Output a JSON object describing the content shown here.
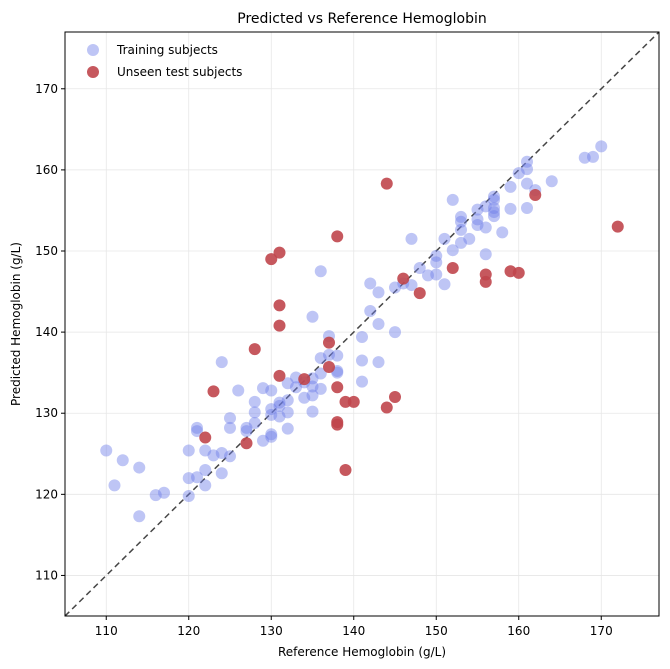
{
  "chart_data": {
    "type": "scatter",
    "title": "Predicted vs Reference Hemoglobin",
    "xlabel": "Reference Hemoglobin (g/L)",
    "ylabel": "Predicted Hemoglobin (g/L)",
    "xlim": [
      105,
      177
    ],
    "ylim": [
      105,
      177
    ],
    "xticks": [
      110,
      120,
      130,
      140,
      150,
      160,
      170
    ],
    "yticks": [
      110,
      120,
      130,
      140,
      150,
      160,
      170
    ],
    "grid": true,
    "legend_position": "top-left",
    "reference_line": "y = x (dashed)",
    "series": [
      {
        "name": "Training subjects",
        "color": "#6f7ee8",
        "points": [
          [
            110,
            125.4
          ],
          [
            111,
            121.1
          ],
          [
            112,
            124.2
          ],
          [
            114,
            117.3
          ],
          [
            114,
            123.3
          ],
          [
            116,
            119.9
          ],
          [
            117,
            120.2
          ],
          [
            120,
            119.8
          ],
          [
            120,
            122.0
          ],
          [
            120,
            125.4
          ],
          [
            121,
            127.8
          ],
          [
            121,
            128.2
          ],
          [
            121,
            122.1
          ],
          [
            122,
            121.1
          ],
          [
            122,
            123.0
          ],
          [
            122,
            125.4
          ],
          [
            123,
            124.8
          ],
          [
            124,
            122.6
          ],
          [
            124,
            125.1
          ],
          [
            124,
            136.3
          ],
          [
            125,
            124.7
          ],
          [
            125,
            128.2
          ],
          [
            125,
            129.4
          ],
          [
            126,
            132.8
          ],
          [
            127,
            127.8
          ],
          [
            127,
            128.2
          ],
          [
            128,
            128.8
          ],
          [
            128,
            130.1
          ],
          [
            128,
            131.4
          ],
          [
            129,
            126.6
          ],
          [
            129,
            133.1
          ],
          [
            130,
            127.4
          ],
          [
            130,
            127.1
          ],
          [
            130,
            129.8
          ],
          [
            130,
            130.5
          ],
          [
            130,
            132.8
          ],
          [
            131,
            130.9
          ],
          [
            131,
            131.3
          ],
          [
            131,
            129.6
          ],
          [
            132,
            128.1
          ],
          [
            132,
            130.1
          ],
          [
            132,
            131.6
          ],
          [
            132,
            133.7
          ],
          [
            133,
            133.2
          ],
          [
            133,
            134.4
          ],
          [
            134,
            131.9
          ],
          [
            134,
            133.8
          ],
          [
            135,
            130.2
          ],
          [
            135,
            132.2
          ],
          [
            135,
            133.3
          ],
          [
            135,
            134.3
          ],
          [
            135,
            141.9
          ],
          [
            136,
            133.0
          ],
          [
            136,
            134.9
          ],
          [
            136,
            136.8
          ],
          [
            136,
            147.5
          ],
          [
            137,
            137.2
          ],
          [
            137,
            139.5
          ],
          [
            138,
            135.0
          ],
          [
            138,
            135.2
          ],
          [
            138,
            137.1
          ],
          [
            141,
            133.9
          ],
          [
            141,
            136.5
          ],
          [
            141,
            139.4
          ],
          [
            142,
            142.6
          ],
          [
            142,
            146.0
          ],
          [
            143,
            136.3
          ],
          [
            143,
            141.0
          ],
          [
            143,
            144.9
          ],
          [
            145,
            140.0
          ],
          [
            145,
            145.5
          ],
          [
            146,
            146.0
          ],
          [
            147,
            145.8
          ],
          [
            147,
            151.5
          ],
          [
            148,
            147.9
          ],
          [
            149,
            147.0
          ],
          [
            150,
            147.1
          ],
          [
            150,
            148.6
          ],
          [
            150,
            149.4
          ],
          [
            151,
            145.9
          ],
          [
            151,
            151.5
          ],
          [
            152,
            150.1
          ],
          [
            152,
            156.3
          ],
          [
            153,
            151.0
          ],
          [
            153,
            152.6
          ],
          [
            153,
            153.6
          ],
          [
            153,
            154.2
          ],
          [
            154,
            151.5
          ],
          [
            155,
            153.2
          ],
          [
            155,
            153.9
          ],
          [
            155,
            155.1
          ],
          [
            156,
            149.6
          ],
          [
            156,
            152.9
          ],
          [
            156,
            155.5
          ],
          [
            157,
            154.3
          ],
          [
            157,
            154.8
          ],
          [
            157,
            155.3
          ],
          [
            157,
            156.3
          ],
          [
            157,
            156.7
          ],
          [
            158,
            152.3
          ],
          [
            159,
            155.2
          ],
          [
            159,
            157.9
          ],
          [
            160,
            159.6
          ],
          [
            161,
            155.3
          ],
          [
            161,
            158.3
          ],
          [
            161,
            160.1
          ],
          [
            161,
            161.0
          ],
          [
            162,
            157.5
          ],
          [
            164,
            158.6
          ],
          [
            168,
            161.5
          ],
          [
            169,
            161.6
          ],
          [
            170,
            162.9
          ]
        ]
      },
      {
        "name": "Unseen test subjects",
        "color": "#c0464d",
        "points": [
          [
            122,
            127.0
          ],
          [
            123,
            132.7
          ],
          [
            127,
            126.3
          ],
          [
            128,
            137.9
          ],
          [
            130,
            149.0
          ],
          [
            131,
            149.8
          ],
          [
            131,
            143.3
          ],
          [
            131,
            140.8
          ],
          [
            131,
            134.6
          ],
          [
            134,
            134.2
          ],
          [
            137,
            138.7
          ],
          [
            137,
            135.7
          ],
          [
            138,
            151.8
          ],
          [
            138,
            133.2
          ],
          [
            138,
            128.9
          ],
          [
            138,
            128.6
          ],
          [
            139,
            131.4
          ],
          [
            139,
            123.0
          ],
          [
            140,
            131.4
          ],
          [
            144,
            158.3
          ],
          [
            144,
            130.7
          ],
          [
            145,
            132.0
          ],
          [
            146,
            146.6
          ],
          [
            148,
            144.8
          ],
          [
            152,
            147.9
          ],
          [
            156,
            147.1
          ],
          [
            156,
            146.2
          ],
          [
            159,
            147.5
          ],
          [
            160,
            147.3
          ],
          [
            162,
            156.9
          ],
          [
            172,
            153.0
          ]
        ]
      }
    ]
  }
}
